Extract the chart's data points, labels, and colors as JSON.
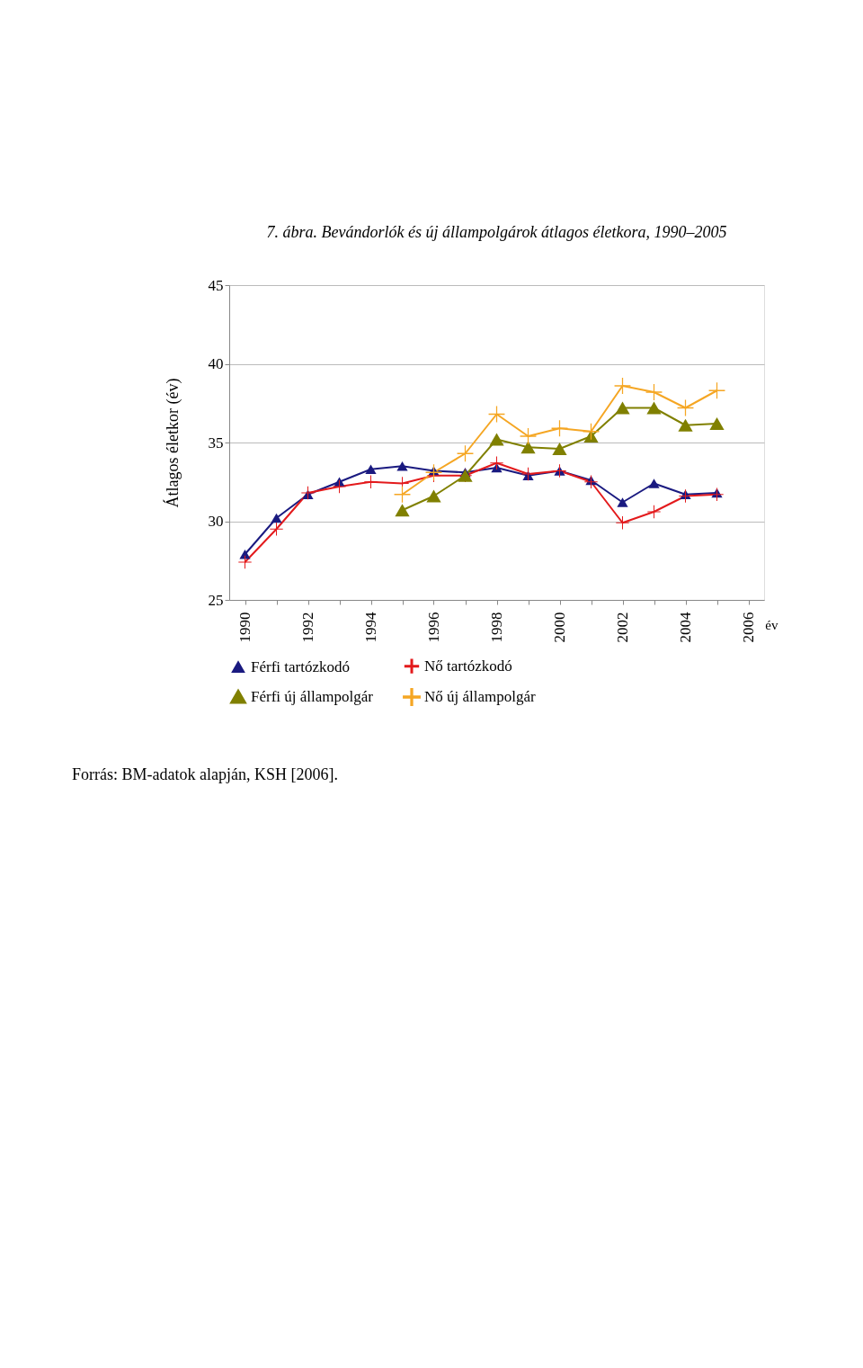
{
  "chart_data": {
    "type": "line",
    "title": "7. ábra. Bevándorlók és új állampolgárok átlagos életkora, 1990–2005",
    "ylabel": "Átlagos életkor (év)",
    "xlabel": "év",
    "x": [
      1990,
      1991,
      1992,
      1993,
      1994,
      1995,
      1996,
      1997,
      1998,
      1999,
      2000,
      2001,
      2002,
      2003,
      2004,
      2005
    ],
    "xlim": [
      1989.5,
      2006.5
    ],
    "xticks": [
      1990,
      {
        "value": 1991,
        "label": null
      },
      1992,
      {
        "value": 1993,
        "label": null
      },
      1994,
      {
        "value": 1995,
        "label": null
      },
      1996,
      {
        "value": 1997,
        "label": null
      },
      1998,
      {
        "value": 1999,
        "label": null
      },
      2000,
      {
        "value": 2001,
        "label": null
      },
      2002,
      {
        "value": 2003,
        "label": null
      },
      2004,
      {
        "value": 2005,
        "label": null
      },
      2006
    ],
    "ylim": [
      25,
      45
    ],
    "yticks": [
      25,
      30,
      35,
      40,
      45
    ],
    "grid": "y",
    "legend": "bottom",
    "series": [
      {
        "name": "Férfi tartózkodó",
        "color": "#1a1a80",
        "marker": "triangle",
        "values": [
          27.9,
          30.2,
          31.7,
          32.5,
          33.3,
          33.5,
          33.2,
          33.1,
          33.4,
          32.9,
          33.2,
          32.6,
          31.2,
          32.4,
          31.7,
          31.8
        ]
      },
      {
        "name": "Nő tartózkodó",
        "color": "#e31a1c",
        "marker": "cross",
        "values": [
          27.4,
          29.5,
          31.8,
          32.2,
          32.5,
          32.4,
          32.9,
          32.9,
          33.7,
          33.0,
          33.2,
          32.5,
          29.9,
          30.6,
          31.6,
          31.7
        ]
      },
      {
        "name": "Férfi új állampolgár",
        "color": "#808000",
        "marker": "triangle",
        "values": [
          null,
          null,
          null,
          null,
          null,
          30.7,
          31.6,
          32.9,
          35.2,
          34.7,
          34.6,
          35.4,
          37.2,
          37.2,
          36.1,
          36.2
        ]
      },
      {
        "name": "Nő új állampolgár",
        "color": "#f5a623",
        "marker": "cross",
        "values": [
          null,
          null,
          null,
          null,
          null,
          31.7,
          33.1,
          34.3,
          36.8,
          35.4,
          35.9,
          35.7,
          38.6,
          38.2,
          37.2,
          38.3
        ]
      }
    ],
    "annotations": [
      "Forrás: BM-adatok alapján, KSH [2006]."
    ]
  }
}
